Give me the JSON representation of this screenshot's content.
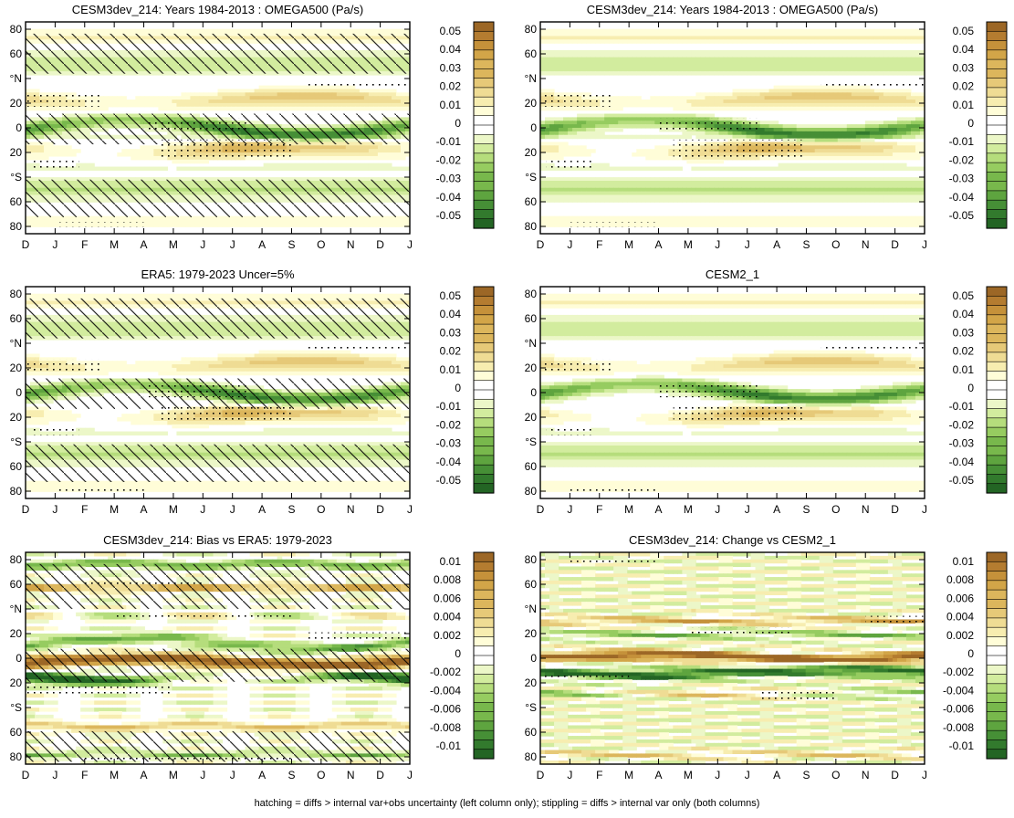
{
  "footnote": "hatching = diffs > internal var+obs uncertainty (left column only); stippling = diffs > internal var only (both columns)",
  "colors": {
    "brown": [
      "#fffdd8",
      "#f7edb0",
      "#efdc94",
      "#e6c978",
      "#dcb65c",
      "#d2a548",
      "#c5913a",
      "#b47c30",
      "#9c6726"
    ],
    "green": [
      "#ecf7c8",
      "#d2ec9e",
      "#b5dd7c",
      "#96cc60",
      "#78b84c",
      "#5ea43f",
      "#468f36",
      "#327a2d",
      "#236524"
    ]
  },
  "chart_data": [
    {
      "type": "heatmap",
      "title": "CESM3dev_214: Years 1984-2013 : OMEGA500 (Pa/s)",
      "variable": "OMEGA500",
      "units": "Pa/s",
      "months": [
        "D",
        "J",
        "F",
        "M",
        "A",
        "M",
        "J",
        "J",
        "A",
        "S",
        "O",
        "N",
        "D",
        "J"
      ],
      "lat_ticks": [
        "80",
        "60",
        "°N",
        "20",
        "0",
        "20",
        "°S",
        "60",
        "80"
      ],
      "colorbar": [
        "0.05",
        "0.04",
        "0.03",
        "0.02",
        "0.01",
        "0",
        "-0.01",
        "-0.02",
        "-0.03",
        "-0.04",
        "-0.05"
      ],
      "vmax": 0.05,
      "pattern": "clim",
      "model": "cesm3",
      "hatching": true,
      "stippling": true
    },
    {
      "type": "heatmap",
      "title": "CESM3dev_214: Years 1984-2013 : OMEGA500 (Pa/s)",
      "variable": "OMEGA500",
      "units": "Pa/s",
      "months": [
        "D",
        "J",
        "F",
        "M",
        "A",
        "M",
        "J",
        "J",
        "A",
        "S",
        "O",
        "N",
        "D",
        "J"
      ],
      "lat_ticks": [
        "80",
        "60",
        "°N",
        "20",
        "0",
        "20",
        "°S",
        "60",
        "80"
      ],
      "colorbar": [
        "0.05",
        "0.04",
        "0.03",
        "0.02",
        "0.01",
        "0",
        "-0.01",
        "-0.02",
        "-0.03",
        "-0.04",
        "-0.05"
      ],
      "vmax": 0.05,
      "pattern": "clim",
      "model": "cesm3",
      "hatching": false,
      "stippling": true
    },
    {
      "type": "heatmap",
      "title": "ERA5: 1979-2023 Uncer=5%",
      "variable": "OMEGA500",
      "units": "Pa/s",
      "months": [
        "D",
        "J",
        "F",
        "M",
        "A",
        "M",
        "J",
        "J",
        "A",
        "S",
        "O",
        "N",
        "D",
        "J"
      ],
      "lat_ticks": [
        "80",
        "60",
        "°N",
        "20",
        "0",
        "20",
        "°S",
        "60",
        "80"
      ],
      "colorbar": [
        "0.05",
        "0.04",
        "0.03",
        "0.02",
        "0.01",
        "0",
        "-0.01",
        "-0.02",
        "-0.03",
        "-0.04",
        "-0.05"
      ],
      "vmax": 0.05,
      "pattern": "clim",
      "model": "era5",
      "hatching": true,
      "stippling": true
    },
    {
      "type": "heatmap",
      "title": "CESM2_1",
      "variable": "OMEGA500",
      "units": "Pa/s",
      "months": [
        "D",
        "J",
        "F",
        "M",
        "A",
        "M",
        "J",
        "J",
        "A",
        "S",
        "O",
        "N",
        "D",
        "J"
      ],
      "lat_ticks": [
        "80",
        "60",
        "°N",
        "20",
        "0",
        "20",
        "°S",
        "60",
        "80"
      ],
      "colorbar": [
        "0.05",
        "0.04",
        "0.03",
        "0.02",
        "0.01",
        "0",
        "-0.01",
        "-0.02",
        "-0.03",
        "-0.04",
        "-0.05"
      ],
      "vmax": 0.05,
      "pattern": "clim",
      "model": "cesm2",
      "hatching": false,
      "stippling": true
    },
    {
      "type": "heatmap",
      "title": "CESM3dev_214: Bias vs ERA5: 1979-2023",
      "variable": "OMEGA500",
      "units": "Pa/s",
      "months": [
        "D",
        "J",
        "F",
        "M",
        "A",
        "M",
        "J",
        "J",
        "A",
        "S",
        "O",
        "N",
        "D",
        "J"
      ],
      "lat_ticks": [
        "80",
        "60",
        "°N",
        "20",
        "0",
        "20",
        "°S",
        "60",
        "80"
      ],
      "colorbar": [
        "0.01",
        "0.008",
        "0.006",
        "0.004",
        "0.002",
        "0",
        "-0.002",
        "-0.004",
        "-0.006",
        "-0.008",
        "-0.01"
      ],
      "vmax": 0.01,
      "pattern": "bias",
      "model": "bias",
      "hatching": true,
      "stippling": true
    },
    {
      "type": "heatmap",
      "title": "CESM3dev_214: Change vs CESM2_1",
      "variable": "OMEGA500",
      "units": "Pa/s",
      "months": [
        "D",
        "J",
        "F",
        "M",
        "A",
        "M",
        "J",
        "J",
        "A",
        "S",
        "O",
        "N",
        "D",
        "J"
      ],
      "lat_ticks": [
        "80",
        "60",
        "°N",
        "20",
        "0",
        "20",
        "°S",
        "60",
        "80"
      ],
      "colorbar": [
        "0.01",
        "0.008",
        "0.006",
        "0.004",
        "0.002",
        "0",
        "-0.002",
        "-0.004",
        "-0.006",
        "-0.008",
        "-0.01"
      ],
      "vmax": 0.01,
      "pattern": "change",
      "model": "change",
      "hatching": false,
      "stippling": true
    }
  ]
}
